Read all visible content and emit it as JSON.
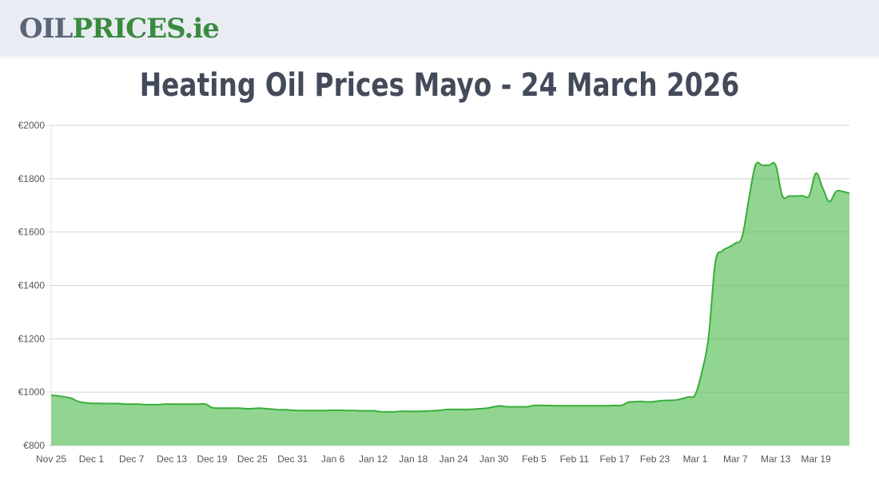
{
  "header": {
    "logo_part1": "OIL",
    "logo_part2": "PRICES.ie"
  },
  "title": "Heating Oil Prices Mayo - 24 March 2026",
  "chart_data": {
    "type": "area",
    "title": "Heating Oil Prices Mayo - 24 March 2026",
    "xlabel": "",
    "ylabel": "",
    "ylim": [
      800,
      2000
    ],
    "y_ticks": [
      "€800",
      "€1000",
      "€1200",
      "€1400",
      "€1600",
      "€1800",
      "€2000"
    ],
    "y_tick_values": [
      800,
      1000,
      1200,
      1400,
      1600,
      1800,
      2000
    ],
    "x_ticks": [
      "Nov 25",
      "Dec 1",
      "Dec 7",
      "Dec 13",
      "Dec 19",
      "Dec 25",
      "Dec 31",
      "Jan 6",
      "Jan 12",
      "Jan 18",
      "Jan 24",
      "Jan 30",
      "Feb 5",
      "Feb 11",
      "Feb 17",
      "Feb 23",
      "Mar 1",
      "Mar 7",
      "Mar 13",
      "Mar 19"
    ],
    "x_range": [
      "Nov 25",
      "Mar 24"
    ],
    "grid": true,
    "line_color": "#3aad3a",
    "fill_color": "#91d591",
    "values": [
      988,
      986,
      982,
      977,
      965,
      960,
      958,
      958,
      957,
      957,
      957,
      955,
      955,
      955,
      953,
      953,
      953,
      955,
      955,
      955,
      955,
      955,
      955,
      955,
      942,
      940,
      940,
      940,
      940,
      938,
      938,
      940,
      938,
      936,
      934,
      934,
      932,
      931,
      931,
      931,
      931,
      931,
      932,
      932,
      931,
      931,
      930,
      930,
      930,
      927,
      926,
      926,
      928,
      928,
      928,
      928,
      929,
      930,
      932,
      935,
      935,
      935,
      935,
      936,
      938,
      940,
      945,
      948,
      945,
      945,
      945,
      945,
      950,
      950,
      950,
      949,
      949,
      949,
      949,
      949,
      949,
      949,
      949,
      949,
      950,
      950,
      962,
      964,
      965,
      963,
      965,
      968,
      969,
      970,
      975,
      982,
      990,
      1075,
      1206,
      1484,
      1528,
      1543,
      1558,
      1582,
      1722,
      1851,
      1850,
      1850,
      1851,
      1736,
      1735,
      1735,
      1736,
      1736,
      1820,
      1766,
      1714,
      1752,
      1752,
      1745
    ]
  }
}
